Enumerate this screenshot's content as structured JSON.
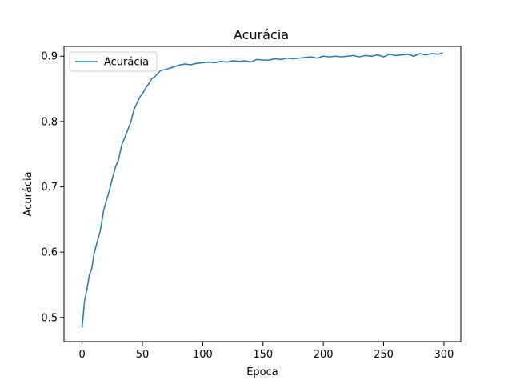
{
  "chart_data": {
    "type": "line",
    "title": "Acurácia",
    "xlabel": "Época",
    "ylabel": "Acurácia",
    "xlim": [
      -15,
      314
    ],
    "ylim": [
      0.463,
      0.915
    ],
    "xticks": [
      0,
      50,
      100,
      150,
      200,
      250,
      300
    ],
    "yticks": [
      0.5,
      0.6,
      0.7,
      0.8,
      0.9
    ],
    "grid": false,
    "legend_position": "top-left",
    "series": [
      {
        "name": "Acurácia",
        "color": "#1f77b4",
        "x": [
          0,
          2,
          4,
          6,
          8,
          10,
          12,
          15,
          18,
          20,
          22,
          25,
          28,
          30,
          33,
          36,
          38,
          40,
          43,
          45,
          48,
          50,
          53,
          55,
          58,
          60,
          63,
          65,
          70,
          75,
          80,
          85,
          90,
          95,
          100,
          105,
          110,
          115,
          120,
          125,
          130,
          135,
          140,
          145,
          150,
          155,
          160,
          165,
          170,
          175,
          180,
          185,
          190,
          195,
          200,
          205,
          210,
          215,
          220,
          225,
          230,
          235,
          240,
          245,
          250,
          255,
          260,
          265,
          270,
          275,
          280,
          285,
          290,
          295,
          299
        ],
        "y": [
          0.484,
          0.525,
          0.543,
          0.565,
          0.575,
          0.598,
          0.612,
          0.632,
          0.665,
          0.678,
          0.69,
          0.712,
          0.732,
          0.74,
          0.765,
          0.778,
          0.788,
          0.797,
          0.818,
          0.826,
          0.838,
          0.842,
          0.852,
          0.857,
          0.866,
          0.868,
          0.874,
          0.878,
          0.88,
          0.883,
          0.886,
          0.888,
          0.887,
          0.889,
          0.89,
          0.891,
          0.89,
          0.892,
          0.891,
          0.893,
          0.892,
          0.893,
          0.891,
          0.895,
          0.894,
          0.894,
          0.896,
          0.895,
          0.897,
          0.896,
          0.897,
          0.898,
          0.899,
          0.897,
          0.9,
          0.899,
          0.9,
          0.899,
          0.9,
          0.901,
          0.899,
          0.901,
          0.9,
          0.902,
          0.899,
          0.903,
          0.901,
          0.902,
          0.903,
          0.9,
          0.904,
          0.902,
          0.904,
          0.903,
          0.905
        ]
      }
    ]
  }
}
